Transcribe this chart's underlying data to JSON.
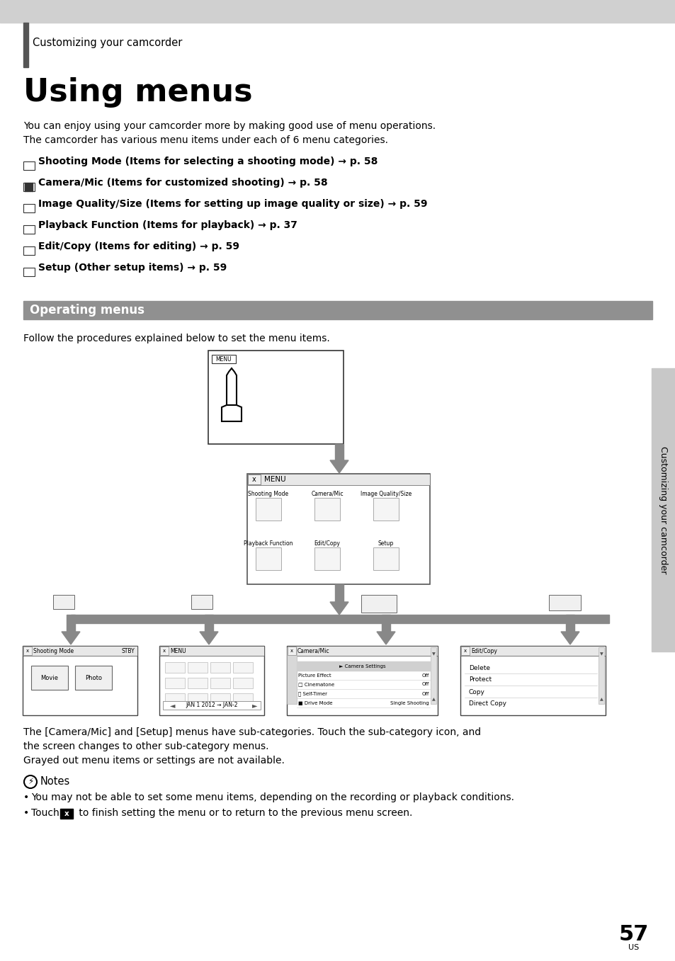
{
  "page_bg": "#ffffff",
  "header_bg": "#d0d0d0",
  "header_bar_bg": "#555555",
  "section_header_bg": "#909090",
  "section_header_text": "#ffffff",
  "page_number": "57",
  "page_number_label": "US",
  "sidebar_bg": "#c8c8c8",
  "title_small": "Customizing your camcorder",
  "title_large": "Using menus",
  "intro_text": "You can enjoy using your camcorder more by making good use of menu operations.\nThe camcorder has various menu items under each of 6 menu categories.",
  "menu_items": [
    "Shooting Mode (Items for selecting a shooting mode) → p. 58",
    "Camera/Mic (Items for customized shooting) → p. 58",
    "Image Quality/Size (Items for setting up image quality or size) → p. 59",
    "Playback Function (Items for playback) → p. 37",
    "Edit/Copy (Items for editing) → p. 59",
    "Setup (Other setup items) → p. 59"
  ],
  "section_title": "Operating menus",
  "follow_text": "Follow the procedures explained below to set the menu items.",
  "camera_mic_text_1": "The [Camera/Mic] and [Setup] menus have sub-categories. Touch the sub-category icon, and",
  "camera_mic_text_2": "the screen changes to other sub-category menus.",
  "camera_mic_text_3": "Grayed out menu items or settings are not available.",
  "notes_title": "Notes",
  "note1": "You may not be able to set some menu items, depending on the recording or playback conditions.",
  "note2_pre": "Touch ",
  "note2_post": " to finish setting the menu or to return to the previous menu screen.",
  "sidebar_text": "Customizing your camcorder"
}
